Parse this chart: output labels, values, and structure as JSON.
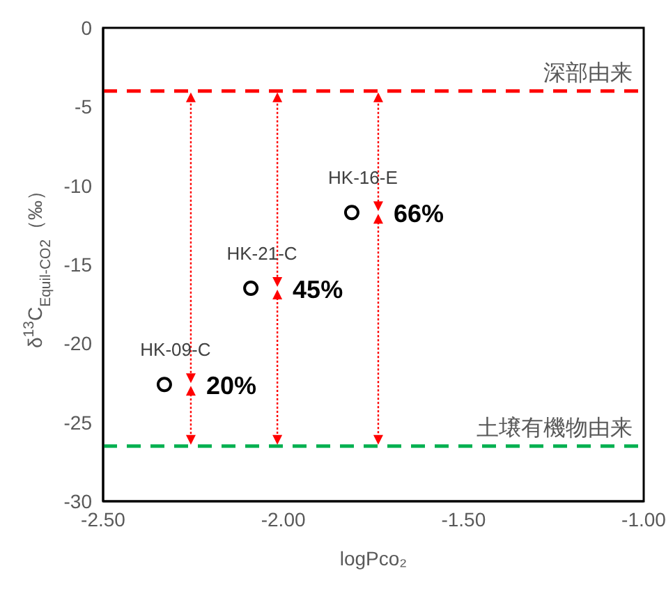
{
  "chart_data": {
    "type": "scatter",
    "xlabel": "logPco₂",
    "ylabel": "δ$^{13}$C$_{Equil-CO2}$（‰）",
    "x": [
      -2.33,
      -2.09,
      -1.81
    ],
    "series": [
      {
        "color": "#000000",
        "values": [
          -22.6,
          -16.5,
          -11.7
        ],
        "value_labels": [
          "HK-09-C",
          "HK-21-C",
          "HK-16-E"
        ]
      }
    ],
    "marker": "circle",
    "grid": false,
    "xlim": [
      -2.5,
      -1.0
    ],
    "xticks": [
      {
        "value": -2.5,
        "label": "-2.50"
      },
      {
        "value": -2.0,
        "label": "-2.00"
      },
      {
        "value": -1.5,
        "label": "-1.50"
      },
      {
        "value": -1.0,
        "label": "-1.00"
      }
    ],
    "ylim": [
      -30,
      0
    ],
    "yticks": [
      -30,
      -25,
      -20,
      -15,
      -10,
      -5,
      0
    ],
    "ref_lines": [
      {
        "axis": "y",
        "value": -4,
        "label": "深部由来",
        "color": "#ff0000",
        "line_style": "dashed"
      },
      {
        "axis": "y",
        "value": -26.5,
        "label": "土壌有機物由来",
        "color": "#00b050",
        "line_style": "dashed"
      }
    ],
    "annotations": [
      {
        "text": "20%",
        "x": -2.33,
        "y": -22.6
      },
      {
        "text": "45%",
        "x": -2.09,
        "y": -16.5
      },
      {
        "text": "66%",
        "x": -1.81,
        "y": -11.7
      }
    ]
  }
}
